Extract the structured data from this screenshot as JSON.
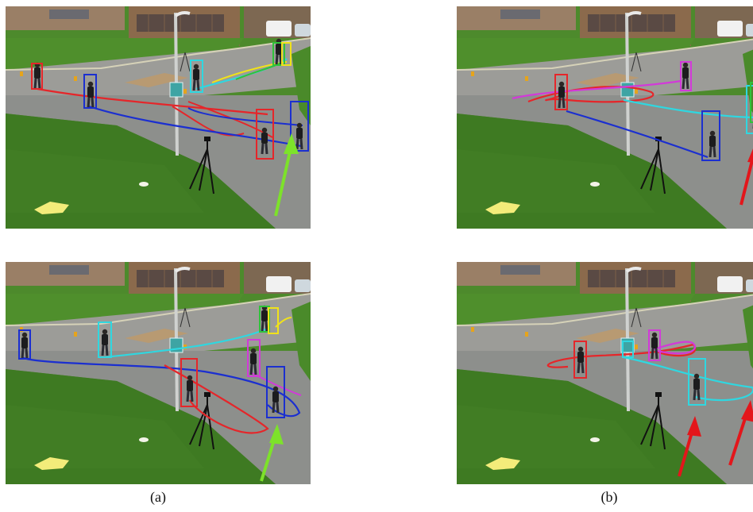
{
  "captions": {
    "a": "(a)",
    "b": "(b)"
  },
  "colors": {
    "grass": "#3e7a22",
    "grass_light": "#5b9433",
    "road": "#8d8f8c",
    "building": "#8b6a4c",
    "track_red": "#e5262a",
    "track_blue": "#1b2fd0",
    "track_cyan": "#2fd7e0",
    "track_magenta": "#d23ad9",
    "track_yellow": "#f0e21a",
    "track_green": "#2fc33a",
    "arrow_green": "#7de22a",
    "arrow_red": "#e3161b"
  },
  "panels": [
    {
      "id": "a-top",
      "arrow_color": "green"
    },
    {
      "id": "b-top",
      "arrow_color": "red"
    },
    {
      "id": "a-bottom",
      "arrow_color": "green"
    },
    {
      "id": "b-bottom",
      "arrow_color": "red"
    }
  ]
}
